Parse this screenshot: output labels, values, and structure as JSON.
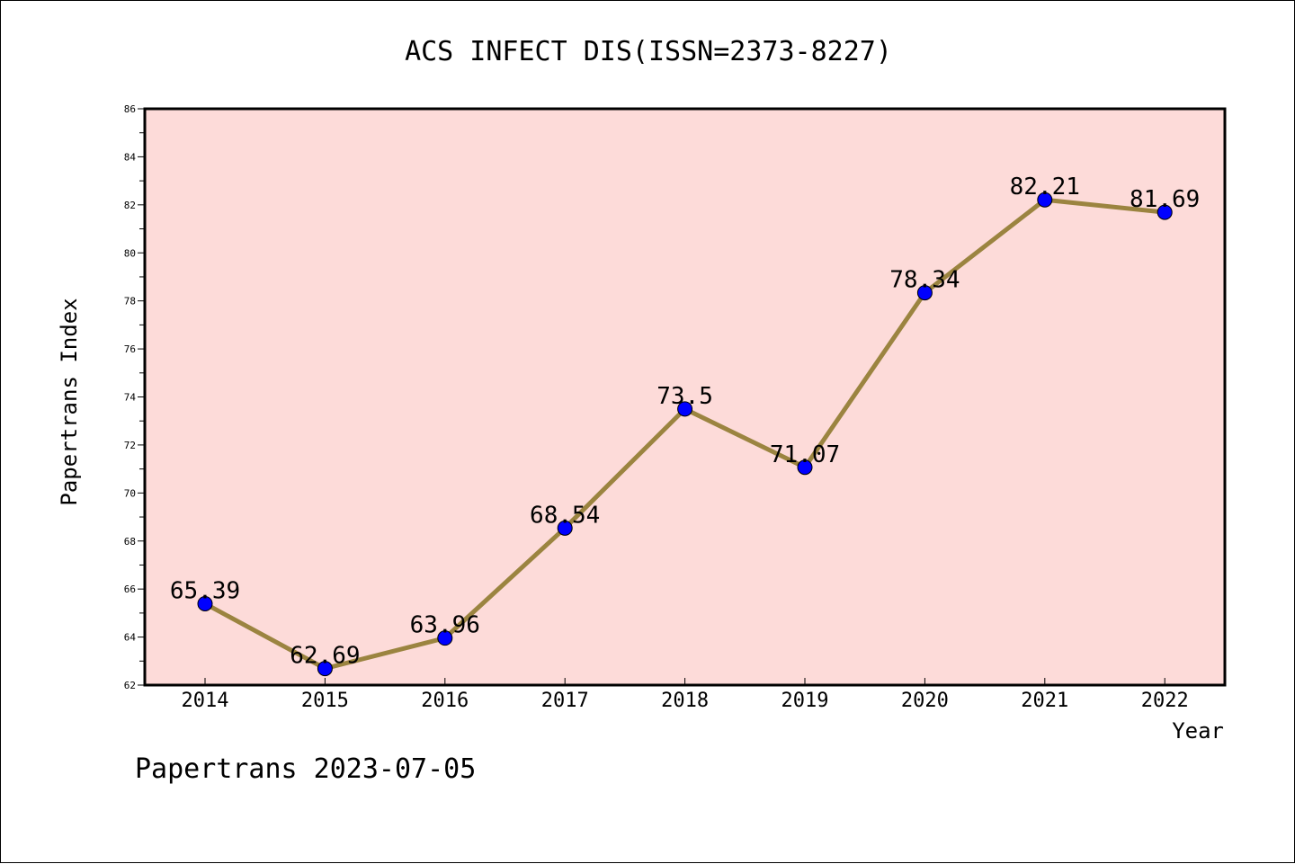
{
  "chart_data": {
    "type": "line",
    "title": "ACS INFECT DIS(ISSN=2373-8227)",
    "xlabel": "Year",
    "ylabel": "Papertrans Index",
    "categories": [
      "2014",
      "2015",
      "2016",
      "2017",
      "2018",
      "2019",
      "2020",
      "2021",
      "2022"
    ],
    "values": [
      65.39,
      62.69,
      63.96,
      68.54,
      73.5,
      71.07,
      78.34,
      82.21,
      81.69
    ],
    "data_labels": [
      "65.39",
      "62.69",
      "63.96",
      "68.54",
      "73.5",
      "71.07",
      "78.34",
      "82.21",
      "81.69"
    ],
    "ylim": [
      62,
      86
    ],
    "yticks": [
      62,
      64,
      66,
      68,
      70,
      72,
      74,
      76,
      78,
      80,
      82,
      84,
      86
    ],
    "grid": false,
    "colors": {
      "plot_background": "#fddbd9",
      "line": "#9b8440",
      "marker": "#0000ff"
    }
  },
  "footer": "Papertrans 2023-07-05"
}
